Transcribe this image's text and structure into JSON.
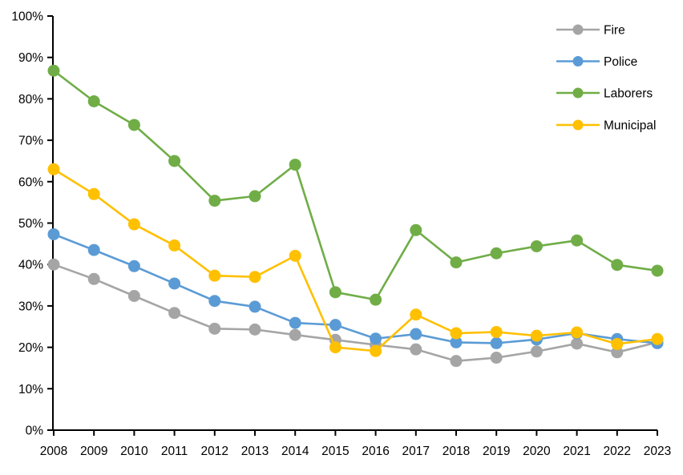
{
  "window": {
    "background_color": "#FFFFFF"
  },
  "chart_data": {
    "type": "line",
    "title": "",
    "xlabel": "",
    "ylabel": "",
    "grid": false,
    "legend_position": "top-right",
    "axis_color": "#000000",
    "text_color": "#000000",
    "x_categories": [
      "2008",
      "2009",
      "2010",
      "2011",
      "2012",
      "2013",
      "2014",
      "2015",
      "2016",
      "2017",
      "2018",
      "2019",
      "2020",
      "2021",
      "2022",
      "2023"
    ],
    "y_axis": {
      "min": 0,
      "max": 100,
      "tick_step": 10,
      "tick_labels": [
        "0%",
        "10%",
        "20%",
        "30%",
        "40%",
        "50%",
        "60%",
        "70%",
        "80%",
        "90%",
        "100%"
      ],
      "unit": "%"
    },
    "series": [
      {
        "name": "Fire",
        "color": "#A5A5A5",
        "values": [
          40.0,
          36.5,
          32.4,
          28.3,
          24.5,
          24.3,
          23.0,
          21.8,
          20.6,
          19.5,
          16.7,
          17.5,
          19.0,
          20.9,
          18.8,
          21.2
        ]
      },
      {
        "name": "Police",
        "color": "#5B9BD5",
        "values": [
          47.3,
          43.5,
          39.6,
          35.4,
          31.2,
          29.8,
          25.9,
          25.4,
          22.1,
          23.2,
          21.2,
          21.0,
          21.9,
          23.4,
          22.0,
          21.0
        ]
      },
      {
        "name": "Laborers",
        "color": "#70AD47",
        "values": [
          86.8,
          79.4,
          73.7,
          65.0,
          55.4,
          56.5,
          64.1,
          33.3,
          31.5,
          48.3,
          40.5,
          42.7,
          44.4,
          45.8,
          39.9,
          38.5
        ]
      },
      {
        "name": "Municipal",
        "color": "#FFC000",
        "values": [
          63.0,
          57.0,
          49.7,
          44.6,
          37.3,
          37.0,
          42.1,
          20.0,
          19.1,
          27.9,
          23.4,
          23.7,
          22.8,
          23.6,
          20.8,
          22.0
        ]
      }
    ]
  }
}
